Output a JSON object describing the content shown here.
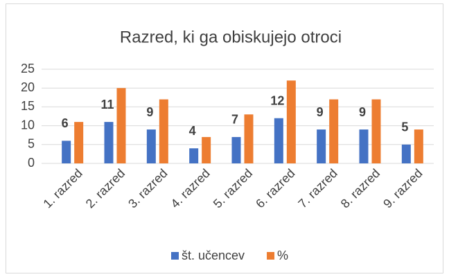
{
  "chart_data": {
    "type": "bar",
    "title": "Razred, ki ga obiskujejo otroci",
    "categories": [
      "1. razred",
      "2. razred",
      "3. razred",
      "4. razred",
      "5. razred",
      "6. razred",
      "7. razred",
      "8. razred",
      "9. razred"
    ],
    "series": [
      {
        "name": "št. učencev",
        "color": "#4472c4",
        "values": [
          6,
          11,
          9,
          4,
          7,
          12,
          9,
          9,
          5
        ],
        "data_labels": true
      },
      {
        "name": "%",
        "color": "#ed7d31",
        "values": [
          11,
          20,
          17,
          7,
          13,
          22,
          17,
          17,
          9
        ],
        "data_labels": false
      }
    ],
    "ylim": [
      0,
      25
    ],
    "yticks": [
      0,
      5,
      10,
      15,
      20,
      25
    ],
    "grid": true,
    "legend": "bottom"
  }
}
